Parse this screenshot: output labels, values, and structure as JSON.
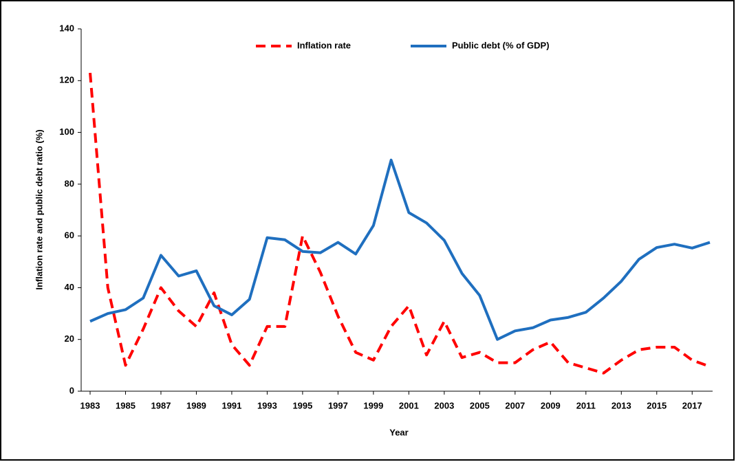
{
  "chart_data": {
    "type": "line",
    "xlabel": "Year",
    "ylabel": "Inflation rate and public debt ratio (%)",
    "x": [
      1983,
      1984,
      1985,
      1986,
      1987,
      1988,
      1989,
      1990,
      1991,
      1992,
      1993,
      1994,
      1995,
      1996,
      1997,
      1998,
      1999,
      2000,
      2001,
      2002,
      2003,
      2004,
      2005,
      2006,
      2007,
      2008,
      2009,
      2010,
      2011,
      2012,
      2013,
      2014,
      2015,
      2016,
      2017,
      2018
    ],
    "series": [
      {
        "name": "Inflation rate",
        "color": "#ff0000",
        "dash": true,
        "values": [
          123,
          40,
          10,
          24,
          40,
          31,
          25,
          38,
          18,
          10,
          25,
          25,
          60,
          46,
          29,
          15,
          12,
          25,
          33,
          14,
          27,
          13,
          15,
          11,
          11,
          16,
          19,
          11,
          9,
          7,
          12,
          16,
          17,
          17,
          12,
          9.5
        ]
      },
      {
        "name": "Public debt (% of GDP)",
        "color": "#1f6fbf",
        "dash": false,
        "values": [
          27,
          30,
          31.5,
          36,
          52.5,
          44.5,
          46.5,
          33,
          29.5,
          35.5,
          59.3,
          58.5,
          54,
          53.5,
          57.5,
          53,
          64,
          89.3,
          69,
          65,
          58.3,
          45.5,
          37,
          20,
          23.3,
          24.5,
          27.5,
          28.5,
          30.5,
          36,
          42.5,
          51,
          55.5,
          56.8,
          55.3,
          57.5
        ]
      }
    ],
    "xlim": [
      1983,
      2018
    ],
    "xticks": [
      1983,
      1985,
      1987,
      1989,
      1991,
      1993,
      1995,
      1997,
      1999,
      2001,
      2003,
      2005,
      2007,
      2009,
      2011,
      2013,
      2015,
      2017
    ],
    "ylim": [
      0,
      140
    ],
    "yticks": [
      0,
      20,
      40,
      60,
      80,
      100,
      120,
      140
    ],
    "legend": "top"
  }
}
